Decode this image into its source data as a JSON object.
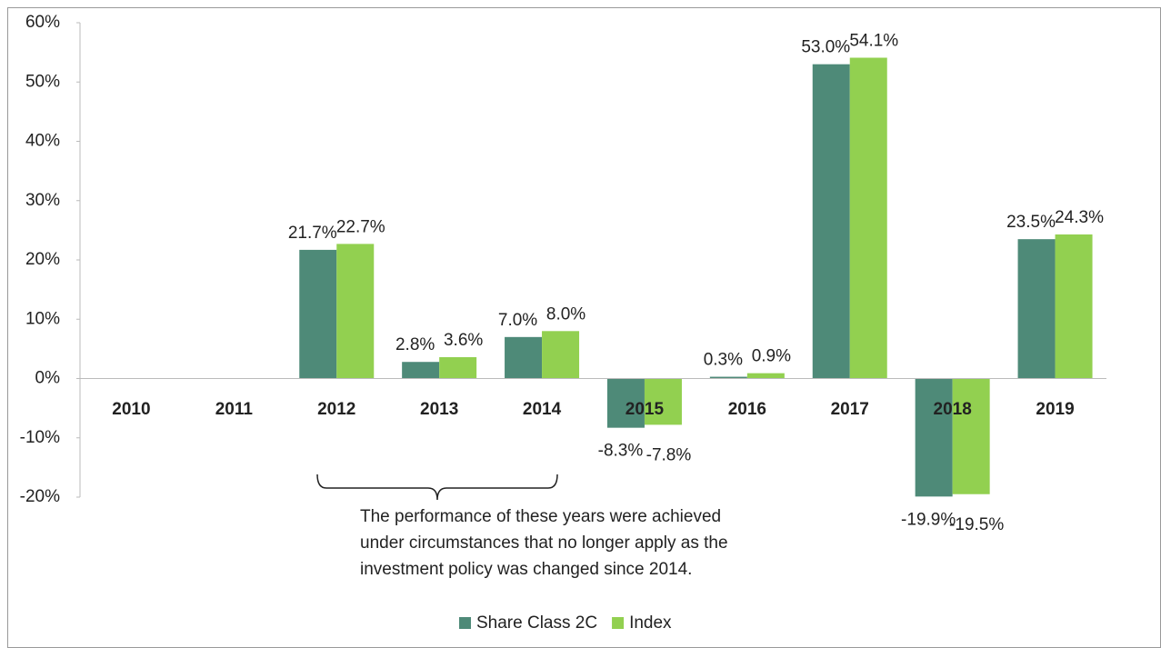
{
  "chart_data": {
    "type": "bar",
    "categories": [
      "2010",
      "2011",
      "2012",
      "2013",
      "2014",
      "2015",
      "2016",
      "2017",
      "2018",
      "2019"
    ],
    "series": [
      {
        "name": "Share Class 2C",
        "color": "#4e8a78",
        "values": [
          null,
          null,
          21.7,
          2.8,
          7.0,
          -8.3,
          0.3,
          53.0,
          -19.9,
          23.5
        ],
        "value_labels": [
          null,
          null,
          "21.7%",
          "2.8%",
          "7.0%",
          "-8.3%",
          "0.3%",
          "53.0%",
          "-19.9%",
          "23.5%"
        ]
      },
      {
        "name": "Index",
        "color": "#92d050",
        "values": [
          null,
          null,
          22.7,
          3.6,
          8.0,
          -7.8,
          0.9,
          54.1,
          -19.5,
          24.3
        ],
        "value_labels": [
          null,
          null,
          "22.7%",
          "3.6%",
          "8.0%",
          "-7.8%",
          "0.9%",
          "54.1%",
          "-19.5%",
          "24.3%"
        ]
      }
    ],
    "ylim": [
      -20,
      60
    ],
    "yticks": [
      {
        "value": -20,
        "label": "-20%"
      },
      {
        "value": -10,
        "label": "-10%"
      },
      {
        "value": 0,
        "label": "0%"
      },
      {
        "value": 10,
        "label": "10%"
      },
      {
        "value": 20,
        "label": "20%"
      },
      {
        "value": 30,
        "label": "30%"
      },
      {
        "value": 40,
        "label": "40%"
      },
      {
        "value": 50,
        "label": "50%"
      },
      {
        "value": 60,
        "label": "60%"
      }
    ],
    "annotation": [
      "The performance of these years were achieved",
      "under circumstances that no longer apply as the",
      "investment policy was changed since 2014."
    ],
    "legend": "bottom"
  }
}
